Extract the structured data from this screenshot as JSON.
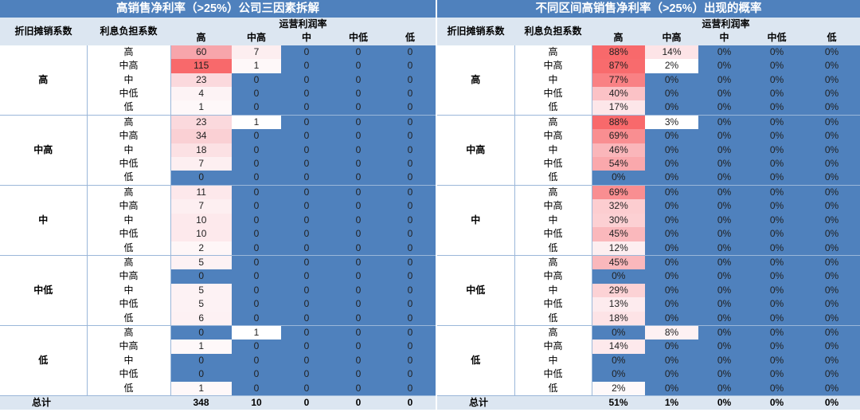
{
  "left": {
    "title": "高销售净利率（>25%）公司三因素拆解",
    "col_dep": "折旧摊销系数",
    "col_int": "利息负担系数",
    "col_op": "运营利润率",
    "op_levels": [
      "高",
      "中高",
      "中",
      "中低",
      "低"
    ],
    "groups": [
      {
        "label": "高",
        "rows": [
          {
            "level": "高",
            "values": [
              "60",
              "7",
              "0",
              "0",
              "0"
            ],
            "colors": [
              "#f7a5ab",
              "#fdeef0",
              "#4f81bd",
              "#4f81bd",
              "#4f81bd"
            ]
          },
          {
            "level": "中高",
            "values": [
              "115",
              "1",
              "0",
              "0",
              "0"
            ],
            "colors": [
              "#f8696b",
              "#fef8f9",
              "#4f81bd",
              "#4f81bd",
              "#4f81bd"
            ]
          },
          {
            "level": "中",
            "values": [
              "23",
              "0",
              "0",
              "0",
              "0"
            ],
            "colors": [
              "#fbd9dd",
              "#4f81bd",
              "#4f81bd",
              "#4f81bd",
              "#4f81bd"
            ]
          },
          {
            "level": "中低",
            "values": [
              "4",
              "0",
              "0",
              "0",
              "0"
            ],
            "colors": [
              "#fdf3f5",
              "#4f81bd",
              "#4f81bd",
              "#4f81bd",
              "#4f81bd"
            ]
          },
          {
            "level": "低",
            "values": [
              "1",
              "0",
              "0",
              "0",
              "0"
            ],
            "colors": [
              "#fef8f9",
              "#4f81bd",
              "#4f81bd",
              "#4f81bd",
              "#4f81bd"
            ]
          }
        ]
      },
      {
        "label": "中高",
        "rows": [
          {
            "level": "高",
            "values": [
              "23",
              "1",
              "0",
              "0",
              "0"
            ],
            "colors": [
              "#fbd9dd",
              "#ffffff",
              "#4f81bd",
              "#4f81bd",
              "#4f81bd"
            ]
          },
          {
            "level": "中高",
            "values": [
              "34",
              "0",
              "0",
              "0",
              "0"
            ],
            "colors": [
              "#fad0d4",
              "#4f81bd",
              "#4f81bd",
              "#4f81bd",
              "#4f81bd"
            ]
          },
          {
            "level": "中",
            "values": [
              "18",
              "0",
              "0",
              "0",
              "0"
            ],
            "colors": [
              "#fce1e4",
              "#4f81bd",
              "#4f81bd",
              "#4f81bd",
              "#4f81bd"
            ]
          },
          {
            "level": "中低",
            "values": [
              "7",
              "0",
              "0",
              "0",
              "0"
            ],
            "colors": [
              "#fdeff1",
              "#4f81bd",
              "#4f81bd",
              "#4f81bd",
              "#4f81bd"
            ]
          },
          {
            "level": "低",
            "values": [
              "0",
              "0",
              "0",
              "0",
              "0"
            ],
            "colors": [
              "#4f81bd",
              "#4f81bd",
              "#4f81bd",
              "#4f81bd",
              "#4f81bd"
            ]
          }
        ]
      },
      {
        "label": "中",
        "rows": [
          {
            "level": "高",
            "values": [
              "11",
              "0",
              "0",
              "0",
              "0"
            ],
            "colors": [
              "#fde8eb",
              "#4f81bd",
              "#4f81bd",
              "#4f81bd",
              "#4f81bd"
            ]
          },
          {
            "level": "中高",
            "values": [
              "7",
              "0",
              "0",
              "0",
              "0"
            ],
            "colors": [
              "#fdeff1",
              "#4f81bd",
              "#4f81bd",
              "#4f81bd",
              "#4f81bd"
            ]
          },
          {
            "level": "中",
            "values": [
              "10",
              "0",
              "0",
              "0",
              "0"
            ],
            "colors": [
              "#fde9ec",
              "#4f81bd",
              "#4f81bd",
              "#4f81bd",
              "#4f81bd"
            ]
          },
          {
            "level": "中低",
            "values": [
              "10",
              "0",
              "0",
              "0",
              "0"
            ],
            "colors": [
              "#fde9ec",
              "#4f81bd",
              "#4f81bd",
              "#4f81bd",
              "#4f81bd"
            ]
          },
          {
            "level": "低",
            "values": [
              "2",
              "0",
              "0",
              "0",
              "0"
            ],
            "colors": [
              "#fef6f7",
              "#4f81bd",
              "#4f81bd",
              "#4f81bd",
              "#4f81bd"
            ]
          }
        ]
      },
      {
        "label": "中低",
        "rows": [
          {
            "level": "高",
            "values": [
              "5",
              "0",
              "0",
              "0",
              "0"
            ],
            "colors": [
              "#fdf2f4",
              "#4f81bd",
              "#4f81bd",
              "#4f81bd",
              "#4f81bd"
            ]
          },
          {
            "level": "中高",
            "values": [
              "0",
              "0",
              "0",
              "0",
              "0"
            ],
            "colors": [
              "#4f81bd",
              "#4f81bd",
              "#4f81bd",
              "#4f81bd",
              "#4f81bd"
            ]
          },
          {
            "level": "中",
            "values": [
              "5",
              "0",
              "0",
              "0",
              "0"
            ],
            "colors": [
              "#fdf2f4",
              "#4f81bd",
              "#4f81bd",
              "#4f81bd",
              "#4f81bd"
            ]
          },
          {
            "level": "中低",
            "values": [
              "5",
              "0",
              "0",
              "0",
              "0"
            ],
            "colors": [
              "#fdf2f4",
              "#4f81bd",
              "#4f81bd",
              "#4f81bd",
              "#4f81bd"
            ]
          },
          {
            "level": "低",
            "values": [
              "6",
              "0",
              "0",
              "0",
              "0"
            ],
            "colors": [
              "#fdf1f3",
              "#4f81bd",
              "#4f81bd",
              "#4f81bd",
              "#4f81bd"
            ]
          }
        ]
      },
      {
        "label": "低",
        "rows": [
          {
            "level": "高",
            "values": [
              "0",
              "1",
              "0",
              "0",
              "0"
            ],
            "colors": [
              "#4f81bd",
              "#ffffff",
              "#4f81bd",
              "#4f81bd",
              "#4f81bd"
            ]
          },
          {
            "level": "中高",
            "values": [
              "1",
              "0",
              "0",
              "0",
              "0"
            ],
            "colors": [
              "#fef8f9",
              "#4f81bd",
              "#4f81bd",
              "#4f81bd",
              "#4f81bd"
            ]
          },
          {
            "level": "中",
            "values": [
              "0",
              "0",
              "0",
              "0",
              "0"
            ],
            "colors": [
              "#4f81bd",
              "#4f81bd",
              "#4f81bd",
              "#4f81bd",
              "#4f81bd"
            ]
          },
          {
            "level": "中低",
            "values": [
              "0",
              "0",
              "0",
              "0",
              "0"
            ],
            "colors": [
              "#4f81bd",
              "#4f81bd",
              "#4f81bd",
              "#4f81bd",
              "#4f81bd"
            ]
          },
          {
            "level": "低",
            "values": [
              "1",
              "0",
              "0",
              "0",
              "0"
            ],
            "colors": [
              "#fef8f9",
              "#4f81bd",
              "#4f81bd",
              "#4f81bd",
              "#4f81bd"
            ]
          }
        ]
      }
    ],
    "total_label": "总计",
    "totals": [
      "348",
      "10",
      "0",
      "0",
      "0"
    ]
  },
  "right": {
    "title": "不同区间高销售净利率（>25%）出现的概率",
    "col_dep": "折旧摊销系数",
    "col_int": "利息负担系数",
    "col_op": "运营利润率",
    "op_levels": [
      "高",
      "中高",
      "中",
      "中低",
      "低"
    ],
    "groups": [
      {
        "label": "高",
        "rows": [
          {
            "level": "高",
            "values": [
              "88%",
              "14%",
              "0%",
              "0%",
              "0%"
            ],
            "colors": [
              "#f8696b",
              "#fde4e7",
              "#4f81bd",
              "#4f81bd",
              "#4f81bd"
            ]
          },
          {
            "level": "中高",
            "values": [
              "87%",
              "2%",
              "0%",
              "0%",
              "0%"
            ],
            "colors": [
              "#f86b6d",
              "#ffffff",
              "#4f81bd",
              "#4f81bd",
              "#4f81bd"
            ]
          },
          {
            "level": "中",
            "values": [
              "77%",
              "0%",
              "0%",
              "0%",
              "0%"
            ],
            "colors": [
              "#f98184",
              "#4f81bd",
              "#4f81bd",
              "#4f81bd",
              "#4f81bd"
            ]
          },
          {
            "level": "中低",
            "values": [
              "40%",
              "0%",
              "0%",
              "0%",
              "0%"
            ],
            "colors": [
              "#fbc2c6",
              "#4f81bd",
              "#4f81bd",
              "#4f81bd",
              "#4f81bd"
            ]
          },
          {
            "level": "低",
            "values": [
              "17%",
              "0%",
              "0%",
              "0%",
              "0%"
            ],
            "colors": [
              "#fde6e9",
              "#4f81bd",
              "#4f81bd",
              "#4f81bd",
              "#4f81bd"
            ]
          }
        ]
      },
      {
        "label": "中高",
        "rows": [
          {
            "level": "高",
            "values": [
              "88%",
              "3%",
              "0%",
              "0%",
              "0%"
            ],
            "colors": [
              "#f8696b",
              "#ffffff",
              "#4f81bd",
              "#4f81bd",
              "#4f81bd"
            ]
          },
          {
            "level": "中高",
            "values": [
              "69%",
              "0%",
              "0%",
              "0%",
              "0%"
            ],
            "colors": [
              "#f98e91",
              "#4f81bd",
              "#4f81bd",
              "#4f81bd",
              "#4f81bd"
            ]
          },
          {
            "level": "中",
            "values": [
              "46%",
              "0%",
              "0%",
              "0%",
              "0%"
            ],
            "colors": [
              "#fab6ba",
              "#4f81bd",
              "#4f81bd",
              "#4f81bd",
              "#4f81bd"
            ]
          },
          {
            "level": "中低",
            "values": [
              "54%",
              "0%",
              "0%",
              "0%",
              "0%"
            ],
            "colors": [
              "#faa8ac",
              "#4f81bd",
              "#4f81bd",
              "#4f81bd",
              "#4f81bd"
            ]
          },
          {
            "level": "低",
            "values": [
              "0%",
              "0%",
              "0%",
              "0%",
              "0%"
            ],
            "colors": [
              "#4f81bd",
              "#4f81bd",
              "#4f81bd",
              "#4f81bd",
              "#4f81bd"
            ]
          }
        ]
      },
      {
        "label": "中",
        "rows": [
          {
            "level": "高",
            "values": [
              "69%",
              "0%",
              "0%",
              "0%",
              "0%"
            ],
            "colors": [
              "#f98e91",
              "#4f81bd",
              "#4f81bd",
              "#4f81bd",
              "#4f81bd"
            ]
          },
          {
            "level": "中高",
            "values": [
              "32%",
              "0%",
              "0%",
              "0%",
              "0%"
            ],
            "colors": [
              "#fccdd0",
              "#4f81bd",
              "#4f81bd",
              "#4f81bd",
              "#4f81bd"
            ]
          },
          {
            "level": "中",
            "values": [
              "30%",
              "0%",
              "0%",
              "0%",
              "0%"
            ],
            "colors": [
              "#fcd0d3",
              "#4f81bd",
              "#4f81bd",
              "#4f81bd",
              "#4f81bd"
            ]
          },
          {
            "level": "中低",
            "values": [
              "45%",
              "0%",
              "0%",
              "0%",
              "0%"
            ],
            "colors": [
              "#fab8bc",
              "#4f81bd",
              "#4f81bd",
              "#4f81bd",
              "#4f81bd"
            ]
          },
          {
            "level": "低",
            "values": [
              "12%",
              "0%",
              "0%",
              "0%",
              "0%"
            ],
            "colors": [
              "#fdeef0",
              "#4f81bd",
              "#4f81bd",
              "#4f81bd",
              "#4f81bd"
            ]
          }
        ]
      },
      {
        "label": "中低",
        "rows": [
          {
            "level": "高",
            "values": [
              "45%",
              "0%",
              "0%",
              "0%",
              "0%"
            ],
            "colors": [
              "#fab8bc",
              "#4f81bd",
              "#4f81bd",
              "#4f81bd",
              "#4f81bd"
            ]
          },
          {
            "level": "中高",
            "values": [
              "0%",
              "0%",
              "0%",
              "0%",
              "0%"
            ],
            "colors": [
              "#4f81bd",
              "#4f81bd",
              "#4f81bd",
              "#4f81bd",
              "#4f81bd"
            ]
          },
          {
            "level": "中",
            "values": [
              "29%",
              "0%",
              "0%",
              "0%",
              "0%"
            ],
            "colors": [
              "#fcd2d5",
              "#4f81bd",
              "#4f81bd",
              "#4f81bd",
              "#4f81bd"
            ]
          },
          {
            "level": "中低",
            "values": [
              "13%",
              "0%",
              "0%",
              "0%",
              "0%"
            ],
            "colors": [
              "#fdebee",
              "#4f81bd",
              "#4f81bd",
              "#4f81bd",
              "#4f81bd"
            ]
          },
          {
            "level": "低",
            "values": [
              "18%",
              "0%",
              "0%",
              "0%",
              "0%"
            ],
            "colors": [
              "#fde3e6",
              "#4f81bd",
              "#4f81bd",
              "#4f81bd",
              "#4f81bd"
            ]
          }
        ]
      },
      {
        "label": "低",
        "rows": [
          {
            "level": "高",
            "values": [
              "0%",
              "8%",
              "0%",
              "0%",
              "0%"
            ],
            "colors": [
              "#4f81bd",
              "#fdf1f3",
              "#4f81bd",
              "#4f81bd",
              "#4f81bd"
            ]
          },
          {
            "level": "中高",
            "values": [
              "14%",
              "0%",
              "0%",
              "0%",
              "0%"
            ],
            "colors": [
              "#fde9ec",
              "#4f81bd",
              "#4f81bd",
              "#4f81bd",
              "#4f81bd"
            ]
          },
          {
            "level": "中",
            "values": [
              "0%",
              "0%",
              "0%",
              "0%",
              "0%"
            ],
            "colors": [
              "#4f81bd",
              "#4f81bd",
              "#4f81bd",
              "#4f81bd",
              "#4f81bd"
            ]
          },
          {
            "level": "中低",
            "values": [
              "0%",
              "0%",
              "0%",
              "0%",
              "0%"
            ],
            "colors": [
              "#4f81bd",
              "#4f81bd",
              "#4f81bd",
              "#4f81bd",
              "#4f81bd"
            ]
          },
          {
            "level": "低",
            "values": [
              "2%",
              "0%",
              "0%",
              "0%",
              "0%"
            ],
            "colors": [
              "#fef9fa",
              "#4f81bd",
              "#4f81bd",
              "#4f81bd",
              "#4f81bd"
            ]
          }
        ]
      }
    ],
    "total_label": "总计",
    "totals": [
      "51%",
      "1%",
      "0%",
      "0%",
      "0%"
    ]
  }
}
